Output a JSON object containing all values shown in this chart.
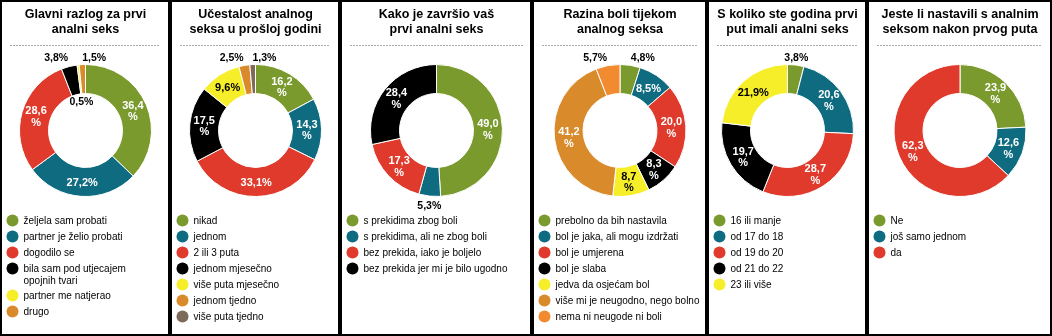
{
  "chart_data": [
    {
      "type": "donut",
      "title": "Glavni razlog za prvi\nanalni seks",
      "legend": "bottom",
      "categories": [
        "željela sam probati",
        "partner je želio probati",
        "dogodilo se",
        "bila sam pod utjecajem\nopojnih tvari",
        "partner me natjerao",
        "drugo"
      ],
      "values": [
        36.4,
        27.2,
        28.6,
        3.8,
        0.5,
        1.5
      ],
      "colors": [
        "#7a9a2e",
        "#0e6b80",
        "#e03a2c",
        "#000000",
        "#f7ee2a",
        "#d98a2a"
      ],
      "value_labels": [
        "36,4\n%",
        "27,2%",
        "28,6\n%",
        "3,8%",
        "0,5%",
        "1,5%"
      ]
    },
    {
      "type": "donut",
      "title": "Učestalost analnog\nseksa u prošloj godini",
      "legend": "bottom",
      "categories": [
        "nikad",
        "jednom",
        "2 ili 3 puta",
        "jednom mjesečno",
        "više puta mjesečno",
        "jednom tjedno",
        "više puta tjedno"
      ],
      "values": [
        16.2,
        14.3,
        33.1,
        17.5,
        9.6,
        2.5,
        1.3
      ],
      "colors": [
        "#7a9a2e",
        "#0e6b80",
        "#e03a2c",
        "#000000",
        "#f7ee2a",
        "#d98a2a",
        "#7d6a58"
      ],
      "value_labels": [
        "16,2\n%",
        "14,3\n%",
        "33,1%",
        "17,5\n%",
        "9,6%",
        "2,5%",
        "1,3%"
      ]
    },
    {
      "type": "donut",
      "title": "Kako je završio vaš\nprvi analni seks",
      "legend": "bottom",
      "categories": [
        "s prekidima zbog boli",
        "s prekidima, ali ne zbog boli",
        "bez prekida, iako je boljelo",
        "bez prekida jer mi je bilo ugodno"
      ],
      "values": [
        49.0,
        5.3,
        17.3,
        28.4
      ],
      "colors": [
        "#7a9a2e",
        "#0e6b80",
        "#e03a2c",
        "#000000"
      ],
      "value_labels": [
        "49,0\n%",
        "5,3%",
        "17,3\n%",
        "28,4\n%"
      ]
    },
    {
      "type": "donut",
      "title": "Razina boli tijekom\nanalnog seksa",
      "legend": "bottom",
      "categories": [
        "prebolno da bih nastavila",
        "bol je jaka, ali mogu izdržati",
        "bol je umjerena",
        "bol je slaba",
        "jedva da osjećam bol",
        "više mi je neugodno, nego bolno",
        "nema ni neugode ni boli"
      ],
      "values": [
        4.8,
        8.5,
        20.0,
        8.3,
        8.7,
        41.2,
        5.7
      ],
      "colors": [
        "#7a9a2e",
        "#0e6b80",
        "#e03a2c",
        "#000000",
        "#f7ee2a",
        "#d98a2a",
        "#f28a30"
      ],
      "value_labels": [
        "4,8%",
        "8,5%",
        "20,0\n%",
        "8,3\n%",
        "8,7\n%",
        "41,2\n%",
        "5,7%"
      ]
    },
    {
      "type": "donut",
      "title": "S koliko ste godina prvi\nput imali analni seks",
      "legend": "bottom",
      "categories": [
        "16 ili manje",
        "od 17 do 18",
        "od 19 do 20",
        "od 21 do 22",
        "23 ili više"
      ],
      "values": [
        3.8,
        20.6,
        28.7,
        19.7,
        21.9
      ],
      "colors": [
        "#7a9a2e",
        "#0e6b80",
        "#e03a2c",
        "#000000",
        "#f7ee2a"
      ],
      "value_labels": [
        "3,8%",
        "20,6\n%",
        "28,7\n%",
        "19,7\n%",
        "21,9%"
      ]
    },
    {
      "type": "donut",
      "title": "Jeste li nastavili s analnim\nseksom nakon prvog puta",
      "legend": "bottom",
      "categories": [
        "Ne",
        "još samo jednom",
        "da"
      ],
      "values": [
        23.9,
        12.6,
        62.3
      ],
      "colors": [
        "#7a9a2e",
        "#0e6b80",
        "#e03a2c"
      ],
      "value_labels": [
        "23,9\n%",
        "12,6\n%",
        "62,3\n%"
      ]
    }
  ]
}
